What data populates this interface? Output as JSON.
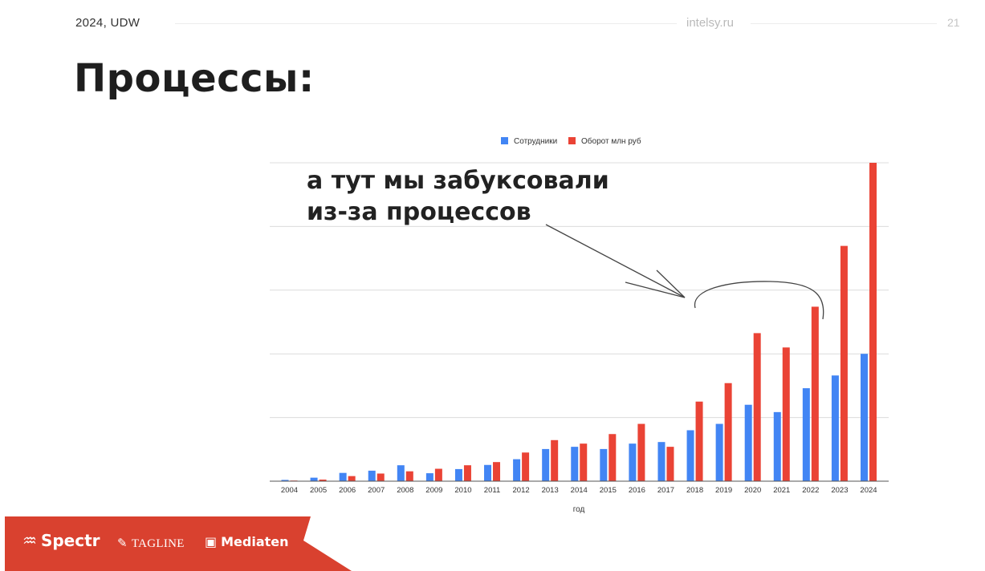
{
  "header": {
    "left_text": "2024,  UDW",
    "center_text": "intelsy.ru",
    "page_number": "21"
  },
  "slide": {
    "title": "Процессы:"
  },
  "annotation": {
    "line1": "а тут мы забуксовали",
    "line2": "из-за процессов"
  },
  "footer": {
    "background_color": "#d9412f",
    "brands": [
      {
        "label": "Spectr",
        "icon": "spectr-logo-icon"
      },
      {
        "label": "TAGLINE",
        "icon": "tagline-logo-icon"
      },
      {
        "label": "Mediaten",
        "icon": "mediaten-logo-icon"
      }
    ]
  },
  "chart_data": {
    "type": "bar",
    "xlabel": "год",
    "ylabel": "",
    "title": "",
    "legend_position": "top-center",
    "grid": true,
    "ylim": [
      0,
      100
    ],
    "categories": [
      "2004",
      "2005",
      "2006",
      "2007",
      "2008",
      "2009",
      "2010",
      "2011",
      "2012",
      "2013",
      "2014",
      "2015",
      "2016",
      "2017",
      "2018",
      "2019",
      "2020",
      "2021",
      "2022",
      "2023",
      "2024"
    ],
    "series": [
      {
        "name": "Сотрудники",
        "color": "#4285f4",
        "values": [
          0.4,
          1.1,
          2.6,
          3.3,
          5.0,
          2.5,
          3.8,
          5.1,
          6.9,
          10.1,
          10.8,
          10.1,
          11.8,
          12.3,
          16.0,
          18.0,
          24.0,
          21.7,
          29.2,
          33.2,
          40.0
        ]
      },
      {
        "name": "Оборот млн руб",
        "color": "#ea4335",
        "values": [
          0.2,
          0.5,
          1.6,
          2.4,
          3.1,
          3.9,
          5.0,
          6.0,
          9.0,
          12.9,
          11.8,
          14.8,
          18.0,
          10.8,
          25.0,
          30.8,
          46.5,
          42.0,
          54.8,
          73.9,
          100.0
        ]
      }
    ]
  }
}
